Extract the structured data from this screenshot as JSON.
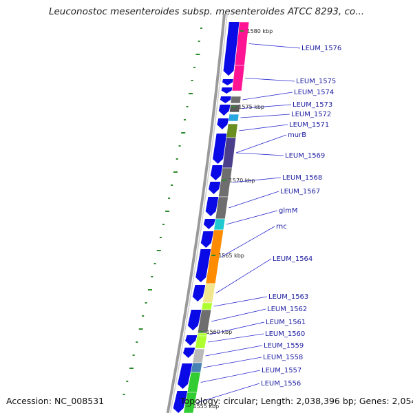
{
  "title": "Leuconostoc mesenteroides subsp. mesenteroides ATCC 8293, co...",
  "accession_text": "Accession: NC_008531",
  "summary_text": "Topology: circular; Length: 2,038,396 bp; Genes: 2,054",
  "colors": {
    "cds_arrow": "#0a0ae6",
    "backbone": "#9a9a9a",
    "gc_tick": "#2d8a2d",
    "label": "#1a1aa0",
    "leader_line": "#2a2ad0"
  },
  "kbp_markers": [
    {
      "text": "1580 kbp"
    },
    {
      "text": "1575 kbp"
    },
    {
      "text": "1570 kbp"
    },
    {
      "text": "1565 kbp"
    },
    {
      "text": "1560 kbp"
    },
    {
      "text": "1555 kbp"
    }
  ],
  "genes": [
    {
      "label": "LEUM_1576",
      "color": "#ff1493"
    },
    {
      "label": "LEUM_1575",
      "color": "#ff1493"
    },
    {
      "label": "LEUM_1574",
      "color": "#6e6e6e"
    },
    {
      "label": "LEUM_1573",
      "color": "#5a5a5a"
    },
    {
      "label": "LEUM_1572",
      "color": "#29a8e0"
    },
    {
      "label": "LEUM_1571",
      "color": "#6b8e23"
    },
    {
      "label": "murB",
      "color": "#4b3f8c"
    },
    {
      "label": "LEUM_1569",
      "color": "#4b3f8c"
    },
    {
      "label": "LEUM_1568",
      "color": "#6e6e6e"
    },
    {
      "label": "LEUM_1567",
      "color": "#6e6e6e"
    },
    {
      "label": "glmM",
      "color": "#20c8d0"
    },
    {
      "label": "rnc",
      "color": "#ff8c00"
    },
    {
      "label": "LEUM_1564",
      "color": "#f0e68c"
    },
    {
      "label": "LEUM_1563",
      "color": "#adff2f"
    },
    {
      "label": "LEUM_1562",
      "color": "#6e6e6e"
    },
    {
      "label": "LEUM_1561",
      "color": "#adff2f"
    },
    {
      "label": "LEUM_1560",
      "color": "#adff2f"
    },
    {
      "label": "LEUM_1559",
      "color": "#b8b8b8"
    },
    {
      "label": "LEUM_1558",
      "color": "#4682b4"
    },
    {
      "label": "LEUM_1557",
      "color": "#32cd32"
    },
    {
      "label": "LEUM_1556",
      "color": "#32cd32"
    }
  ]
}
